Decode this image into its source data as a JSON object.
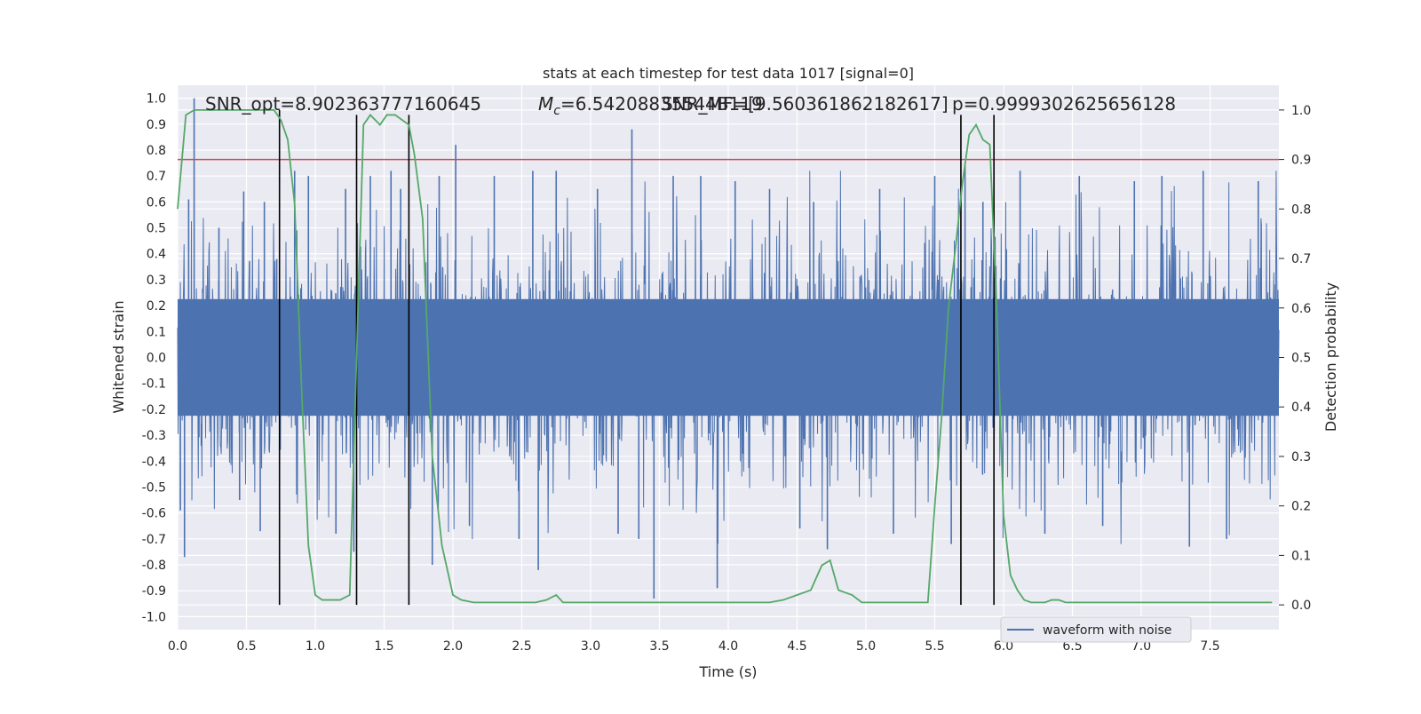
{
  "chart_data": {
    "type": "line",
    "title": "stats at each timestep for test data 1017 [signal=0]",
    "xlabel": "Time (s)",
    "ylabel_left": "Whitened strain",
    "ylabel_right": "Detection probability",
    "xlim": [
      0,
      8
    ],
    "ylim_left": [
      -1.05,
      1.05
    ],
    "ylim_right": [
      -0.05,
      1.05
    ],
    "x_ticks": [
      "0.0",
      "0.5",
      "1.0",
      "1.5",
      "2.0",
      "2.5",
      "3.0",
      "3.5",
      "4.0",
      "4.5",
      "5.0",
      "5.5",
      "6.0",
      "6.5",
      "7.0",
      "7.5"
    ],
    "y_ticks_left": [
      "1.0",
      "0.9",
      "0.8",
      "0.7",
      "0.6",
      "0.5",
      "0.4",
      "0.3",
      "0.2",
      "0.1",
      "0.0",
      "-0.1",
      "-0.2",
      "-0.3",
      "-0.4",
      "-0.5",
      "-0.6",
      "-0.7",
      "-0.8",
      "-0.9",
      "-1.0"
    ],
    "y_ticks_right": [
      "1.0",
      "0.9",
      "0.8",
      "0.7",
      "0.6",
      "0.5",
      "0.4",
      "0.3",
      "0.2",
      "0.1",
      "0.0"
    ],
    "grid": true,
    "legend_position": "bottom-right",
    "annotations": {
      "snr_opt": "SNR_opt=8.902363777160645",
      "mc": "=6.54208835544B119",
      "mc_symbol": "M",
      "mc_sub": "c",
      "snr_mf": "SNR_MF=[9.560361862182617]",
      "p": "p=0.9999302625656128"
    },
    "series": [
      {
        "name": "waveform with noise",
        "kind": "noise",
        "color": "#4c72b0",
        "typical_envelope": 0.45,
        "spikes": [
          [
            0.02,
            -0.59
          ],
          [
            0.05,
            -0.77
          ],
          [
            0.08,
            0.61
          ],
          [
            0.12,
            1.0
          ],
          [
            0.3,
            0.5
          ],
          [
            0.45,
            -0.55
          ],
          [
            0.48,
            0.64
          ],
          [
            0.6,
            -0.67
          ],
          [
            0.63,
            0.6
          ],
          [
            0.72,
            0.38
          ],
          [
            0.85,
            0.72
          ],
          [
            0.95,
            0.7
          ],
          [
            1.15,
            -0.68
          ],
          [
            1.22,
            0.65
          ],
          [
            1.28,
            -0.75
          ],
          [
            1.4,
            0.7
          ],
          [
            1.55,
            0.72
          ],
          [
            1.62,
            0.65
          ],
          [
            1.85,
            -0.8
          ],
          [
            1.9,
            0.7
          ],
          [
            2.02,
            0.82
          ],
          [
            2.12,
            -0.65
          ],
          [
            2.3,
            0.7
          ],
          [
            2.48,
            -0.7
          ],
          [
            2.58,
            0.72
          ],
          [
            2.62,
            -0.82
          ],
          [
            2.75,
            0.72
          ],
          [
            3.05,
            0.65
          ],
          [
            3.2,
            -0.68
          ],
          [
            3.3,
            0.88
          ],
          [
            3.35,
            -0.7
          ],
          [
            3.46,
            -0.93
          ],
          [
            3.6,
            0.7
          ],
          [
            3.8,
            0.7
          ],
          [
            3.92,
            -0.89
          ],
          [
            4.05,
            0.68
          ],
          [
            4.3,
            0.65
          ],
          [
            4.52,
            -0.66
          ],
          [
            4.62,
            0.6
          ],
          [
            4.72,
            -0.74
          ],
          [
            5.1,
            0.65
          ],
          [
            5.2,
            -0.68
          ],
          [
            5.5,
            0.7
          ],
          [
            5.62,
            -0.72
          ],
          [
            5.72,
            0.75
          ],
          [
            5.85,
            0.6
          ],
          [
            6.12,
            0.72
          ],
          [
            6.3,
            -0.68
          ],
          [
            6.55,
            0.7
          ],
          [
            6.72,
            -0.65
          ],
          [
            6.95,
            0.68
          ],
          [
            7.15,
            0.7
          ],
          [
            7.35,
            -0.73
          ],
          [
            7.45,
            0.72
          ],
          [
            7.62,
            -0.7
          ],
          [
            7.85,
            0.68
          ]
        ]
      },
      {
        "kind": "probability",
        "color": "#55a868",
        "x": [
          0.0,
          0.06,
          0.12,
          0.2,
          0.3,
          0.4,
          0.5,
          0.6,
          0.7,
          0.75,
          0.8,
          0.85,
          0.9,
          0.95,
          1.0,
          1.05,
          1.1,
          1.18,
          1.25,
          1.3,
          1.35,
          1.4,
          1.47,
          1.52,
          1.58,
          1.63,
          1.68,
          1.72,
          1.78,
          1.85,
          1.92,
          2.0,
          2.06,
          2.15,
          2.3,
          2.45,
          2.6,
          2.68,
          2.75,
          2.8,
          2.9,
          3.0,
          3.1,
          3.3,
          3.5,
          3.7,
          3.9,
          4.1,
          4.2,
          4.3,
          4.4,
          4.5,
          4.6,
          4.68,
          4.74,
          4.8,
          4.9,
          4.97,
          5.05,
          5.2,
          5.4,
          5.45,
          5.5,
          5.55,
          5.6,
          5.65,
          5.7,
          5.75,
          5.8,
          5.85,
          5.9,
          5.95,
          6.0,
          6.05,
          6.1,
          6.15,
          6.2,
          6.25,
          6.3,
          6.35,
          6.4,
          6.45,
          6.5,
          6.55,
          6.6,
          6.7,
          6.8,
          6.9,
          7.0,
          7.2,
          7.4,
          7.6,
          7.8,
          7.95
        ],
        "y": [
          0.8,
          0.99,
          1.0,
          1.0,
          1.0,
          1.0,
          1.0,
          1.0,
          1.0,
          0.98,
          0.94,
          0.81,
          0.44,
          0.12,
          0.02,
          0.01,
          0.01,
          0.01,
          0.02,
          0.5,
          0.97,
          0.99,
          0.97,
          0.99,
          0.99,
          0.98,
          0.97,
          0.91,
          0.78,
          0.3,
          0.12,
          0.02,
          0.01,
          0.005,
          0.005,
          0.005,
          0.005,
          0.01,
          0.02,
          0.005,
          0.005,
          0.005,
          0.005,
          0.005,
          0.005,
          0.005,
          0.005,
          0.005,
          0.005,
          0.005,
          0.01,
          0.02,
          0.03,
          0.08,
          0.09,
          0.03,
          0.02,
          0.005,
          0.005,
          0.005,
          0.005,
          0.005,
          0.2,
          0.38,
          0.6,
          0.72,
          0.85,
          0.95,
          0.97,
          0.94,
          0.93,
          0.6,
          0.18,
          0.06,
          0.03,
          0.01,
          0.005,
          0.005,
          0.005,
          0.01,
          0.01,
          0.005,
          0.005,
          0.005,
          0.005,
          0.005,
          0.005,
          0.005,
          0.005,
          0.005,
          0.005,
          0.005,
          0.005,
          0.005
        ]
      }
    ],
    "threshold": {
      "value": 0.9,
      "color": "#c44e52"
    },
    "vertical_lines": [
      {
        "x": 0.74,
        "y_top": 1.0
      },
      {
        "x": 1.3,
        "y_top": 0.99
      },
      {
        "x": 1.68,
        "y_top": 0.99
      },
      {
        "x": 5.69,
        "y_top": 0.99
      },
      {
        "x": 5.93,
        "y_top": 0.99
      }
    ]
  }
}
